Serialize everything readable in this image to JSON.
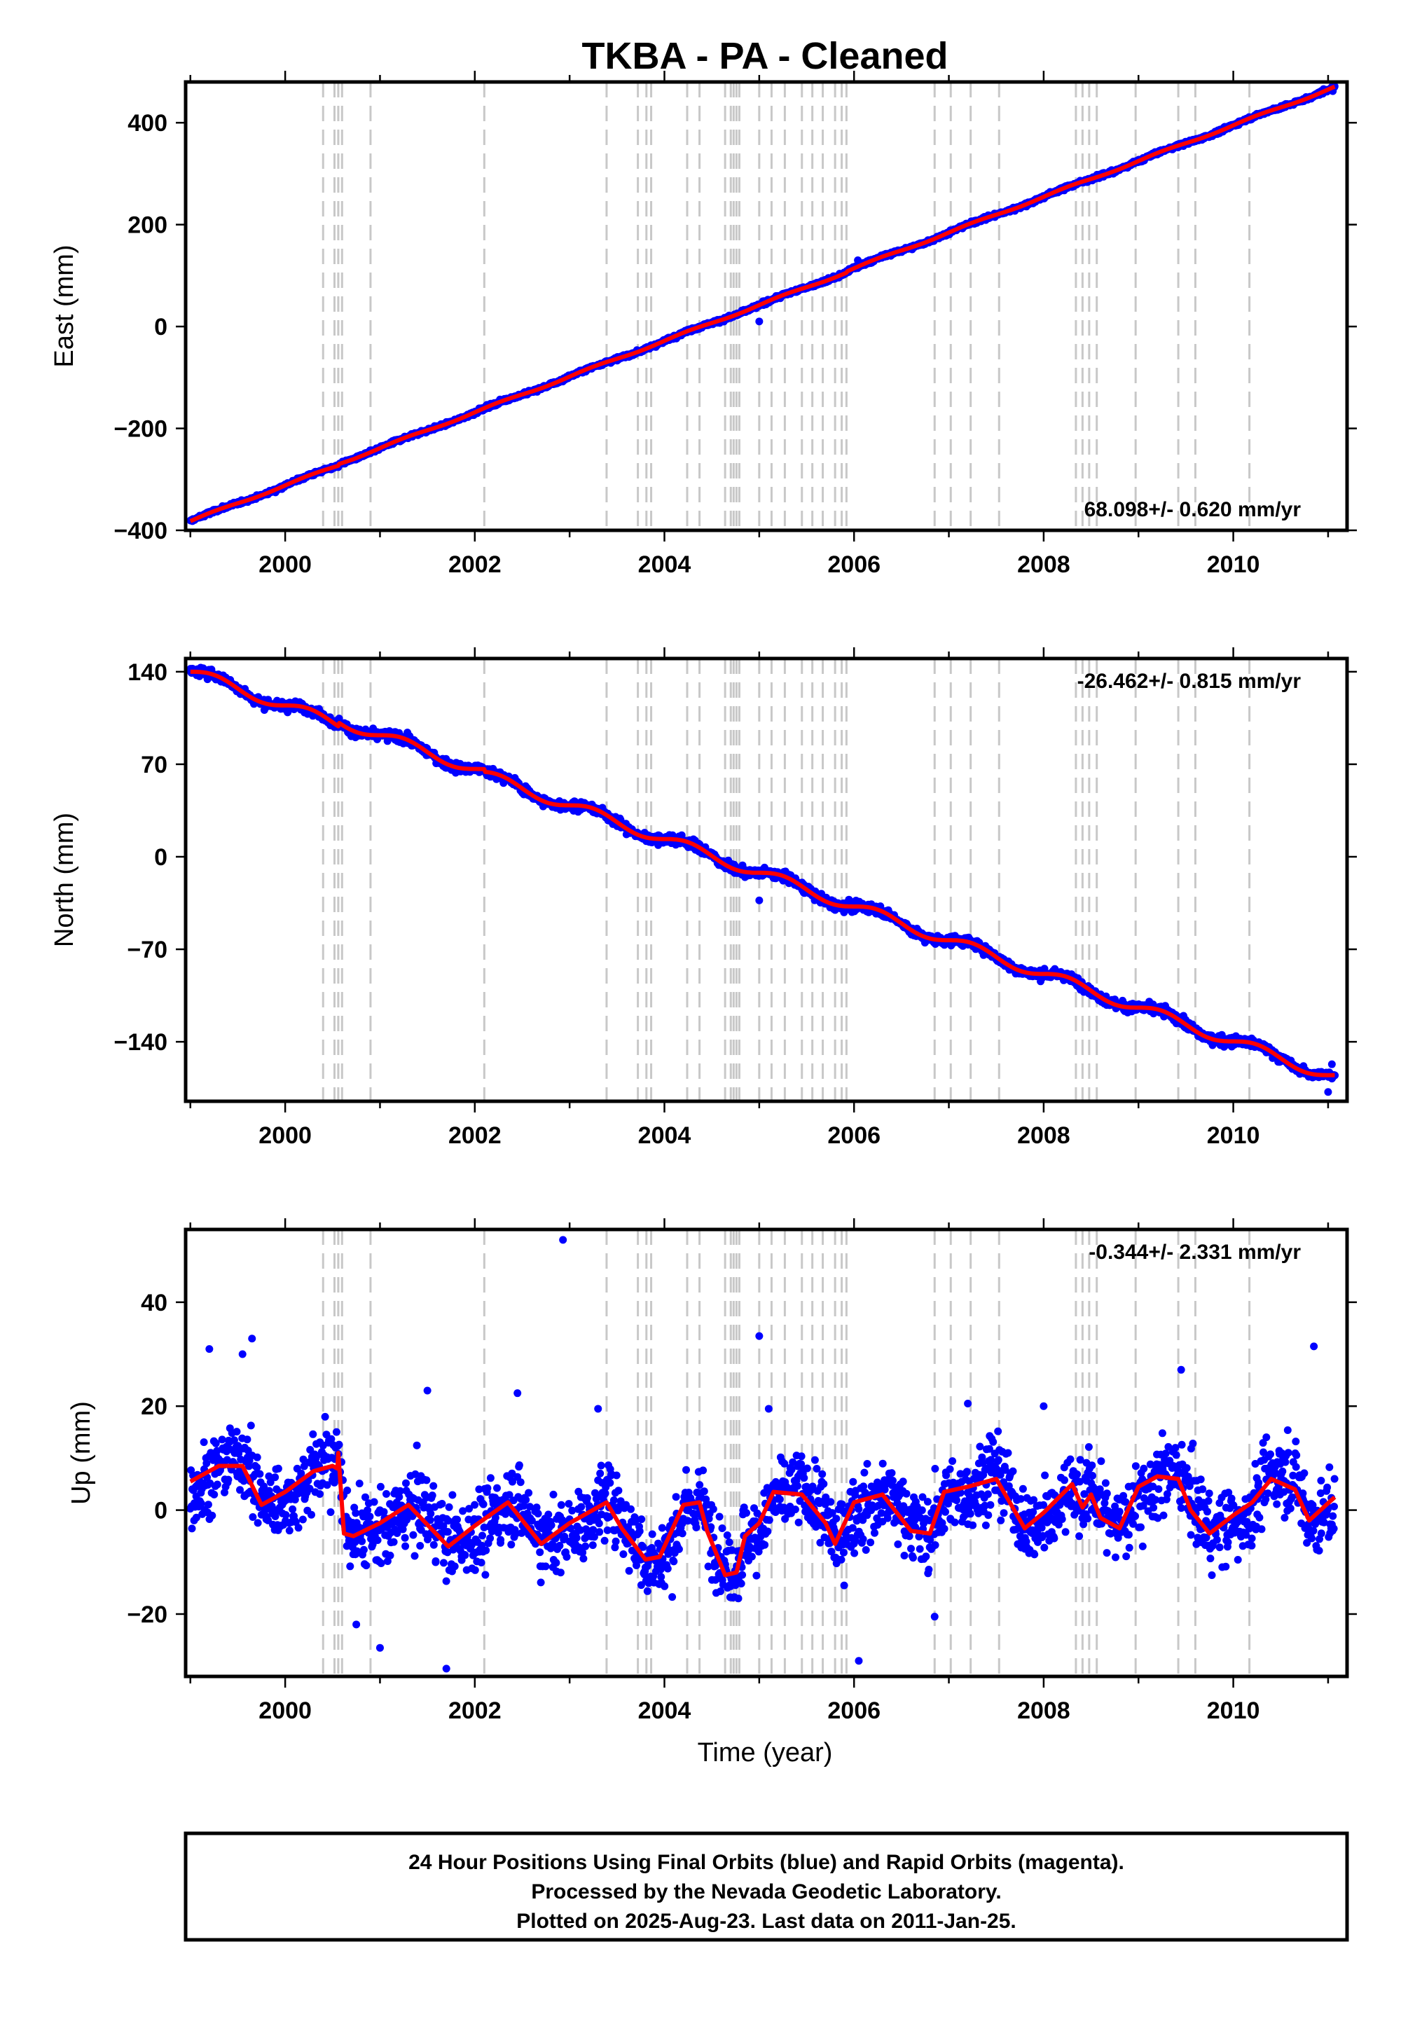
{
  "title": "TKBA  - PA - Cleaned",
  "colors": {
    "final": "#0000ff",
    "rapid": "#ff00ff",
    "model": "#ff0000",
    "break": "#c8c8c8",
    "frame": "#000000"
  },
  "x_axis": {
    "label": "Time (year)",
    "range": [
      1998.95,
      2011.2
    ],
    "ticks": [
      2000,
      2002,
      2004,
      2006,
      2008,
      2010
    ],
    "tick_labels": [
      "2000",
      "2002",
      "2004",
      "2006",
      "2008",
      "2010"
    ]
  },
  "breaks": [
    2000.4,
    2000.52,
    2000.56,
    2000.6,
    2000.9,
    2002.1,
    2003.39,
    2003.72,
    2003.81,
    2003.86,
    2004.24,
    2004.37,
    2004.64,
    2004.7,
    2004.73,
    2004.76,
    2004.79,
    2005.0,
    2005.13,
    2005.27,
    2005.45,
    2005.56,
    2005.67,
    2005.8,
    2005.87,
    2005.92,
    2006.85,
    2007.02,
    2007.23,
    2007.53,
    2008.34,
    2008.41,
    2008.48,
    2008.56,
    2008.97,
    2009.42,
    2009.6,
    2010.17
  ],
  "chart_data": [
    {
      "type": "scatter",
      "name": "east",
      "ylabel": "East (mm)",
      "ylim": [
        -400,
        480
      ],
      "yticks": [
        -400,
        -200,
        0,
        200,
        400
      ],
      "ytick_labels": [
        "−400",
        "−200",
        "0",
        "200",
        "400"
      ],
      "rate": "68.098+/- 0.620 mm/yr",
      "rate_position": "bottom-right",
      "x_start": 1999.0,
      "x_end": 2011.07,
      "y_start": -382,
      "y_end": 465,
      "scatter_noise_mm": 2.5,
      "seasonal_amplitude_mm": 2,
      "offsets": [
        {
          "x": 2000.56,
          "dy": 3
        },
        {
          "x": 2005.92,
          "dy": 2
        }
      ],
      "outliers": [
        {
          "x": 2006.04,
          "y": 130
        },
        {
          "x": 2005.0,
          "y": 10
        },
        {
          "x": 2011.05,
          "y": 462
        }
      ]
    },
    {
      "type": "scatter",
      "name": "north",
      "ylabel": "North (mm)",
      "ylim": [
        -185,
        150
      ],
      "yticks": [
        -140,
        -70,
        0,
        70,
        140
      ],
      "ytick_labels": [
        "−140",
        "−70",
        "0",
        "70",
        "140"
      ],
      "rate": "-26.462+/- 0.815 mm/yr",
      "rate_position": "top-right",
      "x_start": 1999.0,
      "x_end": 2011.07,
      "y_start": 140,
      "y_end": -168,
      "scatter_noise_mm": 2.5,
      "seasonal_amplitude_mm": 4,
      "offsets": [
        {
          "x": 2000.56,
          "dy": 3
        },
        {
          "x": 2002.1,
          "dy": -2
        }
      ],
      "outliers": [
        {
          "x": 2005.0,
          "y": -33
        },
        {
          "x": 2011.0,
          "y": -178
        },
        {
          "x": 2011.04,
          "y": -157
        }
      ]
    },
    {
      "type": "scatter",
      "name": "up",
      "ylabel": "Up (mm)",
      "ylim": [
        -32,
        54
      ],
      "yticks": [
        -20,
        0,
        20,
        40
      ],
      "ytick_labels": [
        "−20",
        "0",
        "20",
        "40"
      ],
      "rate": "-0.344+/- 2.331 mm/yr",
      "rate_position": "top-right",
      "x_start": 1999.0,
      "x_end": 2011.07,
      "model_curve": {
        "x": [
          1999.0,
          1999.3,
          1999.55,
          1999.75,
          2000.0,
          2000.3,
          2000.5,
          2000.55,
          2000.56,
          2000.62,
          2000.72,
          2001.0,
          2001.3,
          2001.72,
          2002.0,
          2002.35,
          2002.7,
          2003.0,
          2003.39,
          2003.55,
          2003.8,
          2003.95,
          2004.2,
          2004.37,
          2004.45,
          2004.64,
          2004.76,
          2004.85,
          2005.0,
          2005.15,
          2005.45,
          2005.7,
          2005.8,
          2006.0,
          2006.3,
          2006.6,
          2006.8,
          2006.95,
          2007.2,
          2007.5,
          2007.8,
          2008.0,
          2008.3,
          2008.41,
          2008.5,
          2008.6,
          2008.8,
          2009.0,
          2009.2,
          2009.42,
          2009.55,
          2009.75,
          2010.0,
          2010.2,
          2010.4,
          2010.65,
          2010.8,
          2011.07
        ],
        "y": [
          5.5,
          8.5,
          8.5,
          1.0,
          3.5,
          7.5,
          8.5,
          8.0,
          11.0,
          -4.5,
          -5.0,
          -2.5,
          1.0,
          -7.0,
          -3.0,
          1.5,
          -6.5,
          -2.5,
          1.5,
          -3.5,
          -9.5,
          -9.0,
          1.0,
          1.5,
          -4.0,
          -12.5,
          -12.0,
          -5.0,
          -2.5,
          3.5,
          3.0,
          -2.5,
          -6.5,
          1.5,
          3.0,
          -4.0,
          -4.5,
          3.5,
          4.5,
          6.0,
          -3.5,
          -0.5,
          5.0,
          0.5,
          3.0,
          -1.5,
          -3.5,
          4.5,
          6.5,
          6.0,
          0.0,
          -4.5,
          -1.0,
          1.5,
          6.0,
          4.0,
          -2.0,
          2.5
        ]
      },
      "scatter_noise_mm": 5,
      "outliers": [
        {
          "x": 2002.93,
          "y": 52
        },
        {
          "x": 2005.0,
          "y": 33.5
        },
        {
          "x": 2000.75,
          "y": -22
        },
        {
          "x": 2001.0,
          "y": -26.5
        },
        {
          "x": 2001.7,
          "y": -30.5
        },
        {
          "x": 1999.2,
          "y": 31
        },
        {
          "x": 1999.65,
          "y": 33
        },
        {
          "x": 1999.55,
          "y": 30
        },
        {
          "x": 2009.45,
          "y": 27
        },
        {
          "x": 2010.85,
          "y": 31.5
        },
        {
          "x": 2006.05,
          "y": -29
        },
        {
          "x": 2006.85,
          "y": -20.5
        },
        {
          "x": 2002.45,
          "y": 22.5
        },
        {
          "x": 2001.5,
          "y": 23
        },
        {
          "x": 2003.3,
          "y": 19.5
        },
        {
          "x": 2007.2,
          "y": 20.5
        },
        {
          "x": 2008.0,
          "y": 20
        },
        {
          "x": 2005.1,
          "y": 19.5
        }
      ]
    }
  ],
  "footer": {
    "line1": "24 Hour Positions Using Final Orbits (blue) and Rapid Orbits (magenta).",
    "line2": "Processed by the Nevada Geodetic Laboratory.",
    "line3": "Plotted on 2025-Aug-23. Last data on 2011-Jan-25."
  }
}
